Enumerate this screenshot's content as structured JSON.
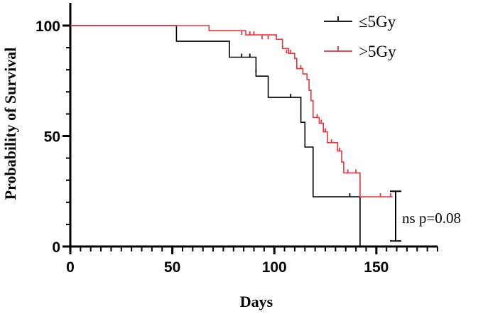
{
  "chart_data": {
    "type": "line",
    "title": "",
    "xlabel": "Days",
    "ylabel": "Probability of Survival",
    "xlim": [
      0,
      180
    ],
    "ylim": [
      0,
      100
    ],
    "x_ticks": [
      "0",
      "50",
      "100",
      "150"
    ],
    "y_ticks": [
      "0",
      "50",
      "100"
    ],
    "grid": false,
    "legend_position": "top-right",
    "series": [
      {
        "name": "≤5Gy",
        "color": "#000000",
        "step_points": [
          [
            0,
            100
          ],
          [
            52,
            100
          ],
          [
            52,
            92.9
          ],
          [
            78,
            92.9
          ],
          [
            78,
            85.7
          ],
          [
            91,
            85.7
          ],
          [
            91,
            77.1
          ],
          [
            97,
            77.1
          ],
          [
            97,
            67.5
          ],
          [
            113,
            67.5
          ],
          [
            113,
            56.2
          ],
          [
            115,
            56.2
          ],
          [
            115,
            45.0
          ],
          [
            119,
            45.0
          ],
          [
            119,
            22.5
          ],
          [
            142,
            22.5
          ],
          [
            142,
            0
          ]
        ],
        "censored": [
          [
            84,
            85.7
          ],
          [
            88,
            85.7
          ],
          [
            91,
            78.5
          ],
          [
            108,
            67.5
          ],
          [
            137,
            22.5
          ]
        ]
      },
      {
        "name": ">5Gy",
        "color": "#e8333a",
        "step_points": [
          [
            0,
            100
          ],
          [
            68,
            100
          ],
          [
            68,
            97.7
          ],
          [
            86,
            97.7
          ],
          [
            86,
            95.8
          ],
          [
            101,
            95.8
          ],
          [
            101,
            93.8
          ],
          [
            104,
            93.8
          ],
          [
            104,
            89.6
          ],
          [
            107,
            89.6
          ],
          [
            107,
            87.4
          ],
          [
            110,
            87.4
          ],
          [
            110,
            85.1
          ],
          [
            111,
            85.1
          ],
          [
            111,
            80.5
          ],
          [
            114,
            80.5
          ],
          [
            114,
            78.1
          ],
          [
            116,
            78.1
          ],
          [
            116,
            75.6
          ],
          [
            117,
            75.6
          ],
          [
            117,
            70.7
          ],
          [
            118,
            70.7
          ],
          [
            118,
            66.0
          ],
          [
            119,
            66.0
          ],
          [
            119,
            58.4
          ],
          [
            122,
            58.4
          ],
          [
            122,
            55.8
          ],
          [
            124,
            55.8
          ],
          [
            124,
            51.9
          ],
          [
            126,
            51.9
          ],
          [
            126,
            47.0
          ],
          [
            131,
            47.0
          ],
          [
            131,
            43.2
          ],
          [
            133,
            43.2
          ],
          [
            133,
            38.2
          ],
          [
            134,
            38.2
          ],
          [
            134,
            33.3
          ],
          [
            142,
            33.3
          ],
          [
            142,
            22.5
          ],
          [
            158,
            22.5
          ]
        ],
        "censored": [
          [
            84,
            95.8
          ],
          [
            88,
            95.8
          ],
          [
            90,
            95.8
          ],
          [
            94,
            93.8
          ],
          [
            97,
            93.8
          ],
          [
            106,
            87.4
          ],
          [
            108,
            87.4
          ],
          [
            113,
            80.5
          ],
          [
            121,
            58.4
          ],
          [
            123,
            55.8
          ],
          [
            125,
            51.9
          ],
          [
            128,
            47.0
          ],
          [
            132,
            43.2
          ],
          [
            136,
            33.3
          ],
          [
            140,
            33.3
          ],
          [
            152,
            22.5
          ],
          [
            157,
            22.5
          ]
        ]
      }
    ],
    "annotation": {
      "text": "ns p=0.08",
      "bracket_y": [
        25,
        2.5
      ]
    }
  }
}
